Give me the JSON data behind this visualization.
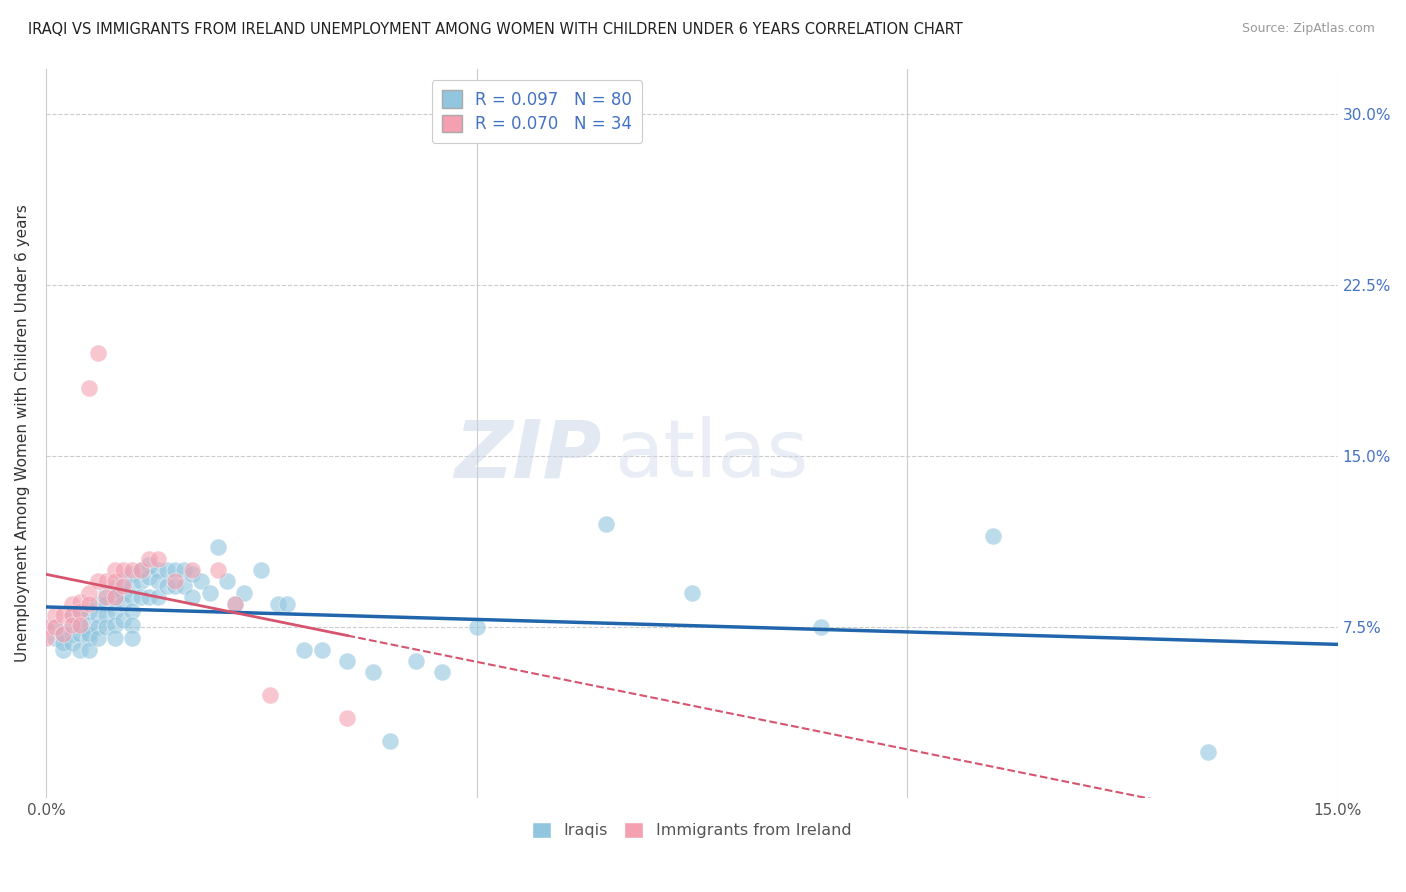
{
  "title": "IRAQI VS IMMIGRANTS FROM IRELAND UNEMPLOYMENT AMONG WOMEN WITH CHILDREN UNDER 6 YEARS CORRELATION CHART",
  "source": "Source: ZipAtlas.com",
  "ylabel": "Unemployment Among Women with Children Under 6 years",
  "xlim": [
    0.0,
    0.15
  ],
  "ylim": [
    0.0,
    0.32
  ],
  "legend_entries": [
    {
      "label": "R = 0.097   N = 80",
      "color": "#92c5de"
    },
    {
      "label": "R = 0.070   N = 34",
      "color": "#f4a0b0"
    }
  ],
  "series1_color": "#92c5de",
  "series2_color": "#f4a0b0",
  "trendline1_color": "#2166ac",
  "trendline2_color": "#d6546e",
  "background_color": "#ffffff",
  "grid_color": "#cccccc",
  "watermark_zip": "ZIP",
  "watermark_atlas": "atlas",
  "iraqis_x": [
    0.001,
    0.001,
    0.002,
    0.002,
    0.002,
    0.003,
    0.003,
    0.003,
    0.003,
    0.004,
    0.004,
    0.004,
    0.004,
    0.005,
    0.005,
    0.005,
    0.005,
    0.005,
    0.006,
    0.006,
    0.006,
    0.006,
    0.007,
    0.007,
    0.007,
    0.007,
    0.008,
    0.008,
    0.008,
    0.008,
    0.008,
    0.009,
    0.009,
    0.009,
    0.009,
    0.01,
    0.01,
    0.01,
    0.01,
    0.01,
    0.01,
    0.011,
    0.011,
    0.011,
    0.012,
    0.012,
    0.012,
    0.013,
    0.013,
    0.013,
    0.014,
    0.014,
    0.015,
    0.015,
    0.016,
    0.016,
    0.017,
    0.017,
    0.018,
    0.019,
    0.02,
    0.021,
    0.022,
    0.023,
    0.025,
    0.027,
    0.028,
    0.03,
    0.032,
    0.035,
    0.038,
    0.04,
    0.043,
    0.046,
    0.05,
    0.065,
    0.075,
    0.09,
    0.11,
    0.135
  ],
  "iraqis_y": [
    0.075,
    0.07,
    0.065,
    0.072,
    0.068,
    0.075,
    0.08,
    0.072,
    0.068,
    0.08,
    0.075,
    0.072,
    0.065,
    0.082,
    0.076,
    0.07,
    0.072,
    0.065,
    0.085,
    0.08,
    0.075,
    0.07,
    0.09,
    0.085,
    0.08,
    0.075,
    0.092,
    0.088,
    0.082,
    0.076,
    0.07,
    0.095,
    0.09,
    0.085,
    0.078,
    0.098,
    0.093,
    0.088,
    0.082,
    0.076,
    0.07,
    0.1,
    0.095,
    0.088,
    0.102,
    0.097,
    0.088,
    0.1,
    0.095,
    0.088,
    0.1,
    0.093,
    0.1,
    0.093,
    0.1,
    0.093,
    0.098,
    0.088,
    0.095,
    0.09,
    0.11,
    0.095,
    0.085,
    0.09,
    0.1,
    0.085,
    0.085,
    0.065,
    0.065,
    0.06,
    0.055,
    0.025,
    0.06,
    0.055,
    0.075,
    0.12,
    0.09,
    0.075,
    0.115,
    0.02
  ],
  "ireland_x": [
    0.0,
    0.0,
    0.001,
    0.001,
    0.002,
    0.002,
    0.003,
    0.003,
    0.003,
    0.004,
    0.004,
    0.004,
    0.005,
    0.005,
    0.005,
    0.006,
    0.006,
    0.007,
    0.007,
    0.008,
    0.008,
    0.008,
    0.009,
    0.009,
    0.01,
    0.011,
    0.012,
    0.013,
    0.015,
    0.017,
    0.02,
    0.022,
    0.026,
    0.035
  ],
  "ireland_y": [
    0.075,
    0.07,
    0.08,
    0.075,
    0.08,
    0.072,
    0.085,
    0.08,
    0.076,
    0.086,
    0.082,
    0.076,
    0.09,
    0.085,
    0.18,
    0.095,
    0.195,
    0.095,
    0.088,
    0.1,
    0.095,
    0.088,
    0.1,
    0.093,
    0.1,
    0.1,
    0.105,
    0.105,
    0.095,
    0.1,
    0.1,
    0.085,
    0.045,
    0.035
  ]
}
